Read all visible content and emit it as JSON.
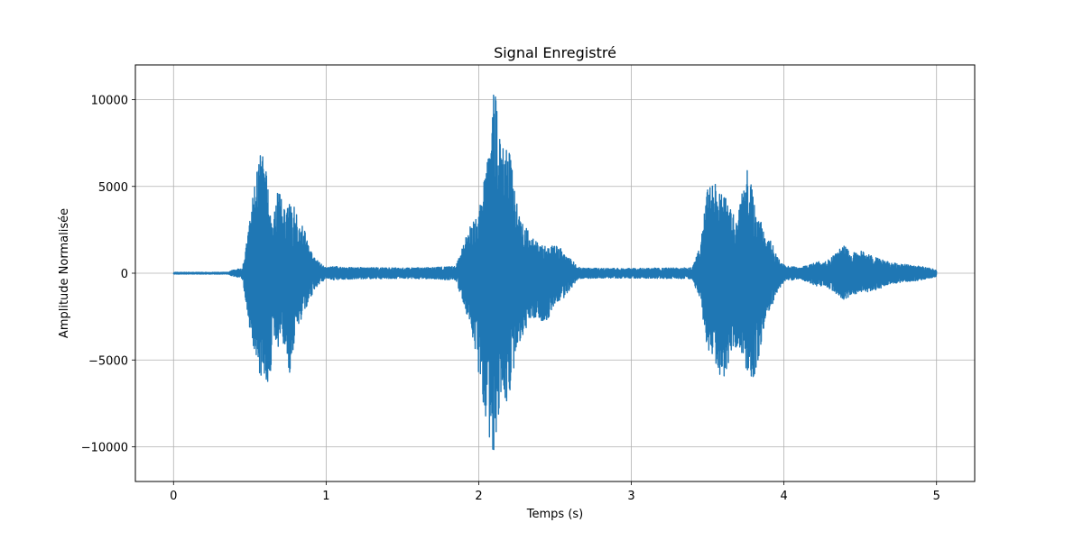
{
  "chart_data": {
    "type": "line",
    "title": "Signal Enregistré",
    "xlabel": "Temps (s)",
    "ylabel": "Amplitude Normalisée",
    "xlim": [
      -0.25,
      5.25
    ],
    "ylim": [
      -12000,
      12000
    ],
    "grid": true,
    "x_ticks": [
      0,
      1,
      2,
      3,
      4,
      5
    ],
    "x_tick_labels": [
      "0",
      "1",
      "2",
      "3",
      "4",
      "5"
    ],
    "y_ticks": [
      -10000,
      -5000,
      0,
      5000,
      10000
    ],
    "y_tick_labels": [
      "−10000",
      "−5000",
      "0",
      "5000",
      "10000"
    ],
    "series": [
      {
        "color": "#1f77b4",
        "envelope": {
          "t": [
            0,
            0.36,
            0.38,
            0.45,
            0.48,
            0.52,
            0.55,
            0.58,
            0.6,
            0.62,
            0.65,
            0.68,
            0.72,
            0.76,
            0.8,
            0.83,
            0.85,
            0.88,
            0.92,
            0.96,
            1.0,
            1.05,
            1.1,
            1.3,
            1.5,
            1.7,
            1.85,
            1.9,
            1.95,
            2.0,
            2.05,
            2.1,
            2.12,
            2.15,
            2.18,
            2.22,
            2.25,
            2.3,
            2.35,
            2.45,
            2.5,
            2.55,
            2.65,
            2.7,
            2.8,
            3.0,
            3.2,
            3.4,
            3.45,
            3.5,
            3.55,
            3.6,
            3.65,
            3.7,
            3.75,
            3.78,
            3.8,
            3.82,
            3.85,
            3.88,
            3.92,
            3.96,
            4.0,
            4.1,
            4.2,
            4.3,
            4.4,
            4.43,
            4.5,
            4.6,
            4.7,
            4.8,
            4.9,
            5.0
          ],
          "max": [
            50,
            50,
            150,
            300,
            1800,
            4500,
            6400,
            7000,
            6200,
            5200,
            2500,
            5100,
            3800,
            4000,
            3900,
            2700,
            2800,
            1800,
            900,
            600,
            300,
            400,
            350,
            320,
            300,
            330,
            400,
            1800,
            2800,
            3600,
            6200,
            10700,
            10000,
            7500,
            7700,
            6300,
            4200,
            2800,
            2000,
            1500,
            1600,
            1400,
            350,
            300,
            280,
            280,
            300,
            320,
            1500,
            5100,
            5300,
            4600,
            3800,
            3300,
            6500,
            5600,
            4300,
            3500,
            3200,
            2300,
            1800,
            900,
            500,
            300,
            600,
            800,
            1800,
            1100,
            1300,
            900,
            600,
            500,
            400,
            200
          ],
          "min": [
            -50,
            -50,
            -150,
            -300,
            -2000,
            -4800,
            -5800,
            -6200,
            -6100,
            -7900,
            -3800,
            -4200,
            -4300,
            -5900,
            -3500,
            -2800,
            -2500,
            -1900,
            -1000,
            -600,
            -300,
            -400,
            -350,
            -320,
            -300,
            -330,
            -400,
            -1800,
            -3200,
            -6000,
            -8500,
            -11000,
            -9600,
            -6400,
            -7600,
            -6200,
            -4500,
            -3300,
            -2800,
            -2700,
            -1800,
            -1500,
            -350,
            -300,
            -280,
            -280,
            -300,
            -320,
            -1600,
            -4500,
            -5200,
            -6400,
            -4700,
            -4100,
            -5800,
            -6000,
            -6000,
            -5600,
            -4700,
            -2600,
            -1900,
            -1000,
            -500,
            -300,
            -700,
            -900,
            -1600,
            -1300,
            -1200,
            -1000,
            -600,
            -500,
            -400,
            -200
          ]
        }
      }
    ]
  }
}
